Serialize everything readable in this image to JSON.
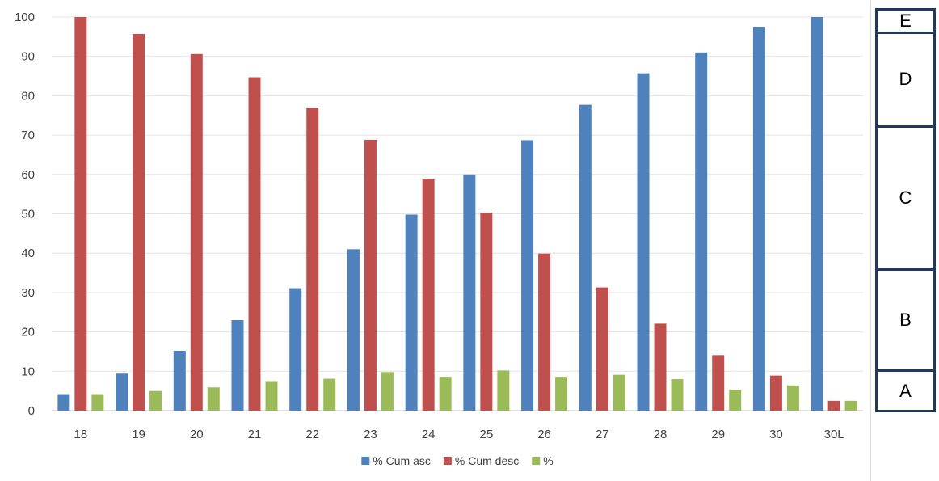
{
  "chart_data": {
    "type": "bar",
    "categories": [
      "18",
      "19",
      "20",
      "21",
      "22",
      "23",
      "24",
      "25",
      "26",
      "27",
      "28",
      "29",
      "30",
      "30L"
    ],
    "series": [
      {
        "name": "% Cum asc",
        "color": "#4f81bd",
        "values": [
          4.2,
          9.4,
          15.2,
          23.0,
          31.1,
          41.0,
          49.8,
          60.0,
          68.7,
          77.7,
          85.7,
          91.0,
          97.5,
          100
        ]
      },
      {
        "name": "% Cum desc",
        "color": "#c0504d",
        "values": [
          100,
          95.7,
          90.6,
          84.7,
          77.0,
          68.8,
          58.9,
          50.3,
          39.9,
          31.3,
          22.1,
          14.1,
          8.9,
          2.5
        ]
      },
      {
        "name": "%",
        "color": "#9bbb59",
        "values": [
          4.2,
          5.0,
          5.9,
          7.5,
          8.1,
          9.8,
          8.6,
          10.2,
          8.6,
          9.1,
          8.0,
          5.3,
          6.4,
          2.5
        ]
      }
    ],
    "yticks": [
      0,
      10,
      20,
      30,
      40,
      50,
      60,
      70,
      80,
      90,
      100
    ],
    "ylim": [
      0,
      100
    ],
    "grid": true,
    "legend": "bottom"
  },
  "grade_scale": [
    {
      "label": "E",
      "from": 97,
      "to": 100
    },
    {
      "label": "D",
      "from": 73,
      "to": 97
    },
    {
      "label": "C",
      "from": 36,
      "to": 73
    },
    {
      "label": "B",
      "from": 10,
      "to": 36
    },
    {
      "label": "A",
      "from": 0,
      "to": 10
    }
  ]
}
